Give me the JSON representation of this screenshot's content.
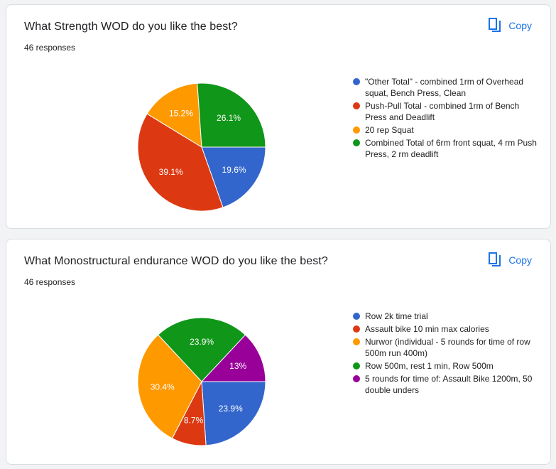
{
  "questions": [
    {
      "title": "What Strength WOD do you like the best?",
      "responses": "46 responses",
      "copy_label": "Copy"
    },
    {
      "title": "What Monostructural endurance WOD do you like the best?",
      "responses": "46 responses",
      "copy_label": "Copy"
    }
  ],
  "chart_data": [
    {
      "type": "pie",
      "title": "What Strength WOD do you like the best?",
      "start_angle_deg": 90,
      "direction": "clockwise",
      "slices": [
        {
          "label": "\"Other Total\" - combined 1rm of Overhead squat, Bench Press, Clean",
          "value": 19.6,
          "label_text": "19.6%",
          "color": "#3366cc"
        },
        {
          "label": "Push-Pull Total - combined 1rm of Bench Press and Deadlift",
          "value": 39.1,
          "label_text": "39.1%",
          "color": "#dc3912"
        },
        {
          "label": "20 rep Squat",
          "value": 15.2,
          "label_text": "15.2%",
          "color": "#ff9900"
        },
        {
          "label": "Combined Total of 6rm front squat, 4 rm Push Press, 2 rm deadlift",
          "value": 26.1,
          "label_text": "26.1%",
          "color": "#109618"
        }
      ],
      "legend": "right"
    },
    {
      "type": "pie",
      "title": "What Monostructural endurance WOD do you like the best?",
      "start_angle_deg": 90,
      "direction": "clockwise",
      "slices": [
        {
          "label": "Row 2k time trial",
          "value": 23.9,
          "label_text": "23.9%",
          "color": "#3366cc"
        },
        {
          "label": "Assault bike 10 min max calories",
          "value": 8.7,
          "label_text": "8.7%",
          "color": "#dc3912"
        },
        {
          "label": "Nurwor (individual - 5 rounds for time of row 500m run 400m)",
          "value": 30.4,
          "label_text": "30.4%",
          "color": "#ff9900"
        },
        {
          "label": "Row 500m, rest 1 min, Row 500m",
          "value": 23.9,
          "label_text": "23.9%",
          "color": "#109618"
        },
        {
          "label": "5 rounds for time of: Assault Bike 1200m, 50 double unders",
          "value": 13.0,
          "label_text": "13%",
          "color": "#990099"
        }
      ],
      "legend": "right"
    }
  ]
}
